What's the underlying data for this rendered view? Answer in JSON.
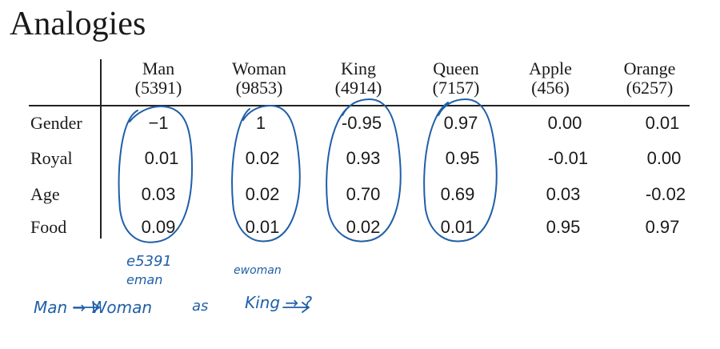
{
  "title": "Analogies",
  "columns": [
    {
      "word": "Man",
      "index": "(5391)"
    },
    {
      "word": "Woman",
      "index": "(9853)"
    },
    {
      "word": "King",
      "index": "(4914)"
    },
    {
      "word": "Queen",
      "index": "(7157)"
    },
    {
      "word": "Apple",
      "index": "(456)"
    },
    {
      "word": "Orange",
      "index": "(6257)"
    }
  ],
  "rows": [
    {
      "label": "Gender",
      "values": [
        "−1",
        "1",
        "-0.95",
        "0.97",
        "0.00",
        "0.01"
      ]
    },
    {
      "label": "Royal",
      "values": [
        "0.01",
        "0.02",
        "0.93",
        "0.95",
        "-0.01",
        "0.00"
      ]
    },
    {
      "label": "Age",
      "values": [
        "0.03",
        "0.02",
        "0.70",
        "0.69",
        "0.03",
        "-0.02"
      ]
    },
    {
      "label": "Food",
      "values": [
        "0.09",
        "0.01",
        "0.02",
        "0.01",
        "0.95",
        "0.97"
      ]
    }
  ],
  "annotations": {
    "e_5391": "e5391",
    "e_man": "eman",
    "e_woman": "ewoman",
    "analogy_line": {
      "left": "Man → Woman",
      "middle": "as",
      "right": "King → ?"
    }
  },
  "ink_color": "#1f5fa8"
}
